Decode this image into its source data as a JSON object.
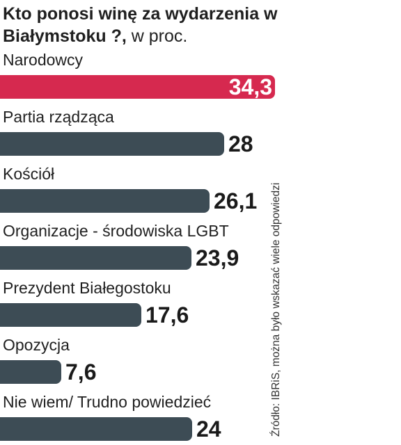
{
  "title": "Kto ponosi winę za wydarzenia w Białymstoku ?,",
  "title_unit": "w proc.",
  "source": "Źródło: IBRiS, można było wskazać wiele odpowiedzi",
  "colors": {
    "highlight": "#d6294f",
    "default": "#3d4c55"
  },
  "chart_data": {
    "type": "bar",
    "orientation": "horizontal",
    "title": "Kto ponosi winę za wydarzenia w Białymstoku ?, w proc.",
    "categories": [
      "Narodowcy",
      "Partia rządząca",
      "Kościół",
      "Organizacje - środowiska LGBT",
      "Prezydent Białegostoku",
      "Opozycja",
      "Nie wiem/ Trudno powiedzieć"
    ],
    "values": [
      34.3,
      28,
      26.1,
      23.9,
      17.6,
      7.6,
      24
    ],
    "value_labels": [
      "34,3",
      "28",
      "26,1",
      "23,9",
      "17,6",
      "7,6",
      "24"
    ],
    "highlight_index": 0,
    "xlim": [
      0,
      34.3
    ],
    "grid": false,
    "legend": "none"
  }
}
